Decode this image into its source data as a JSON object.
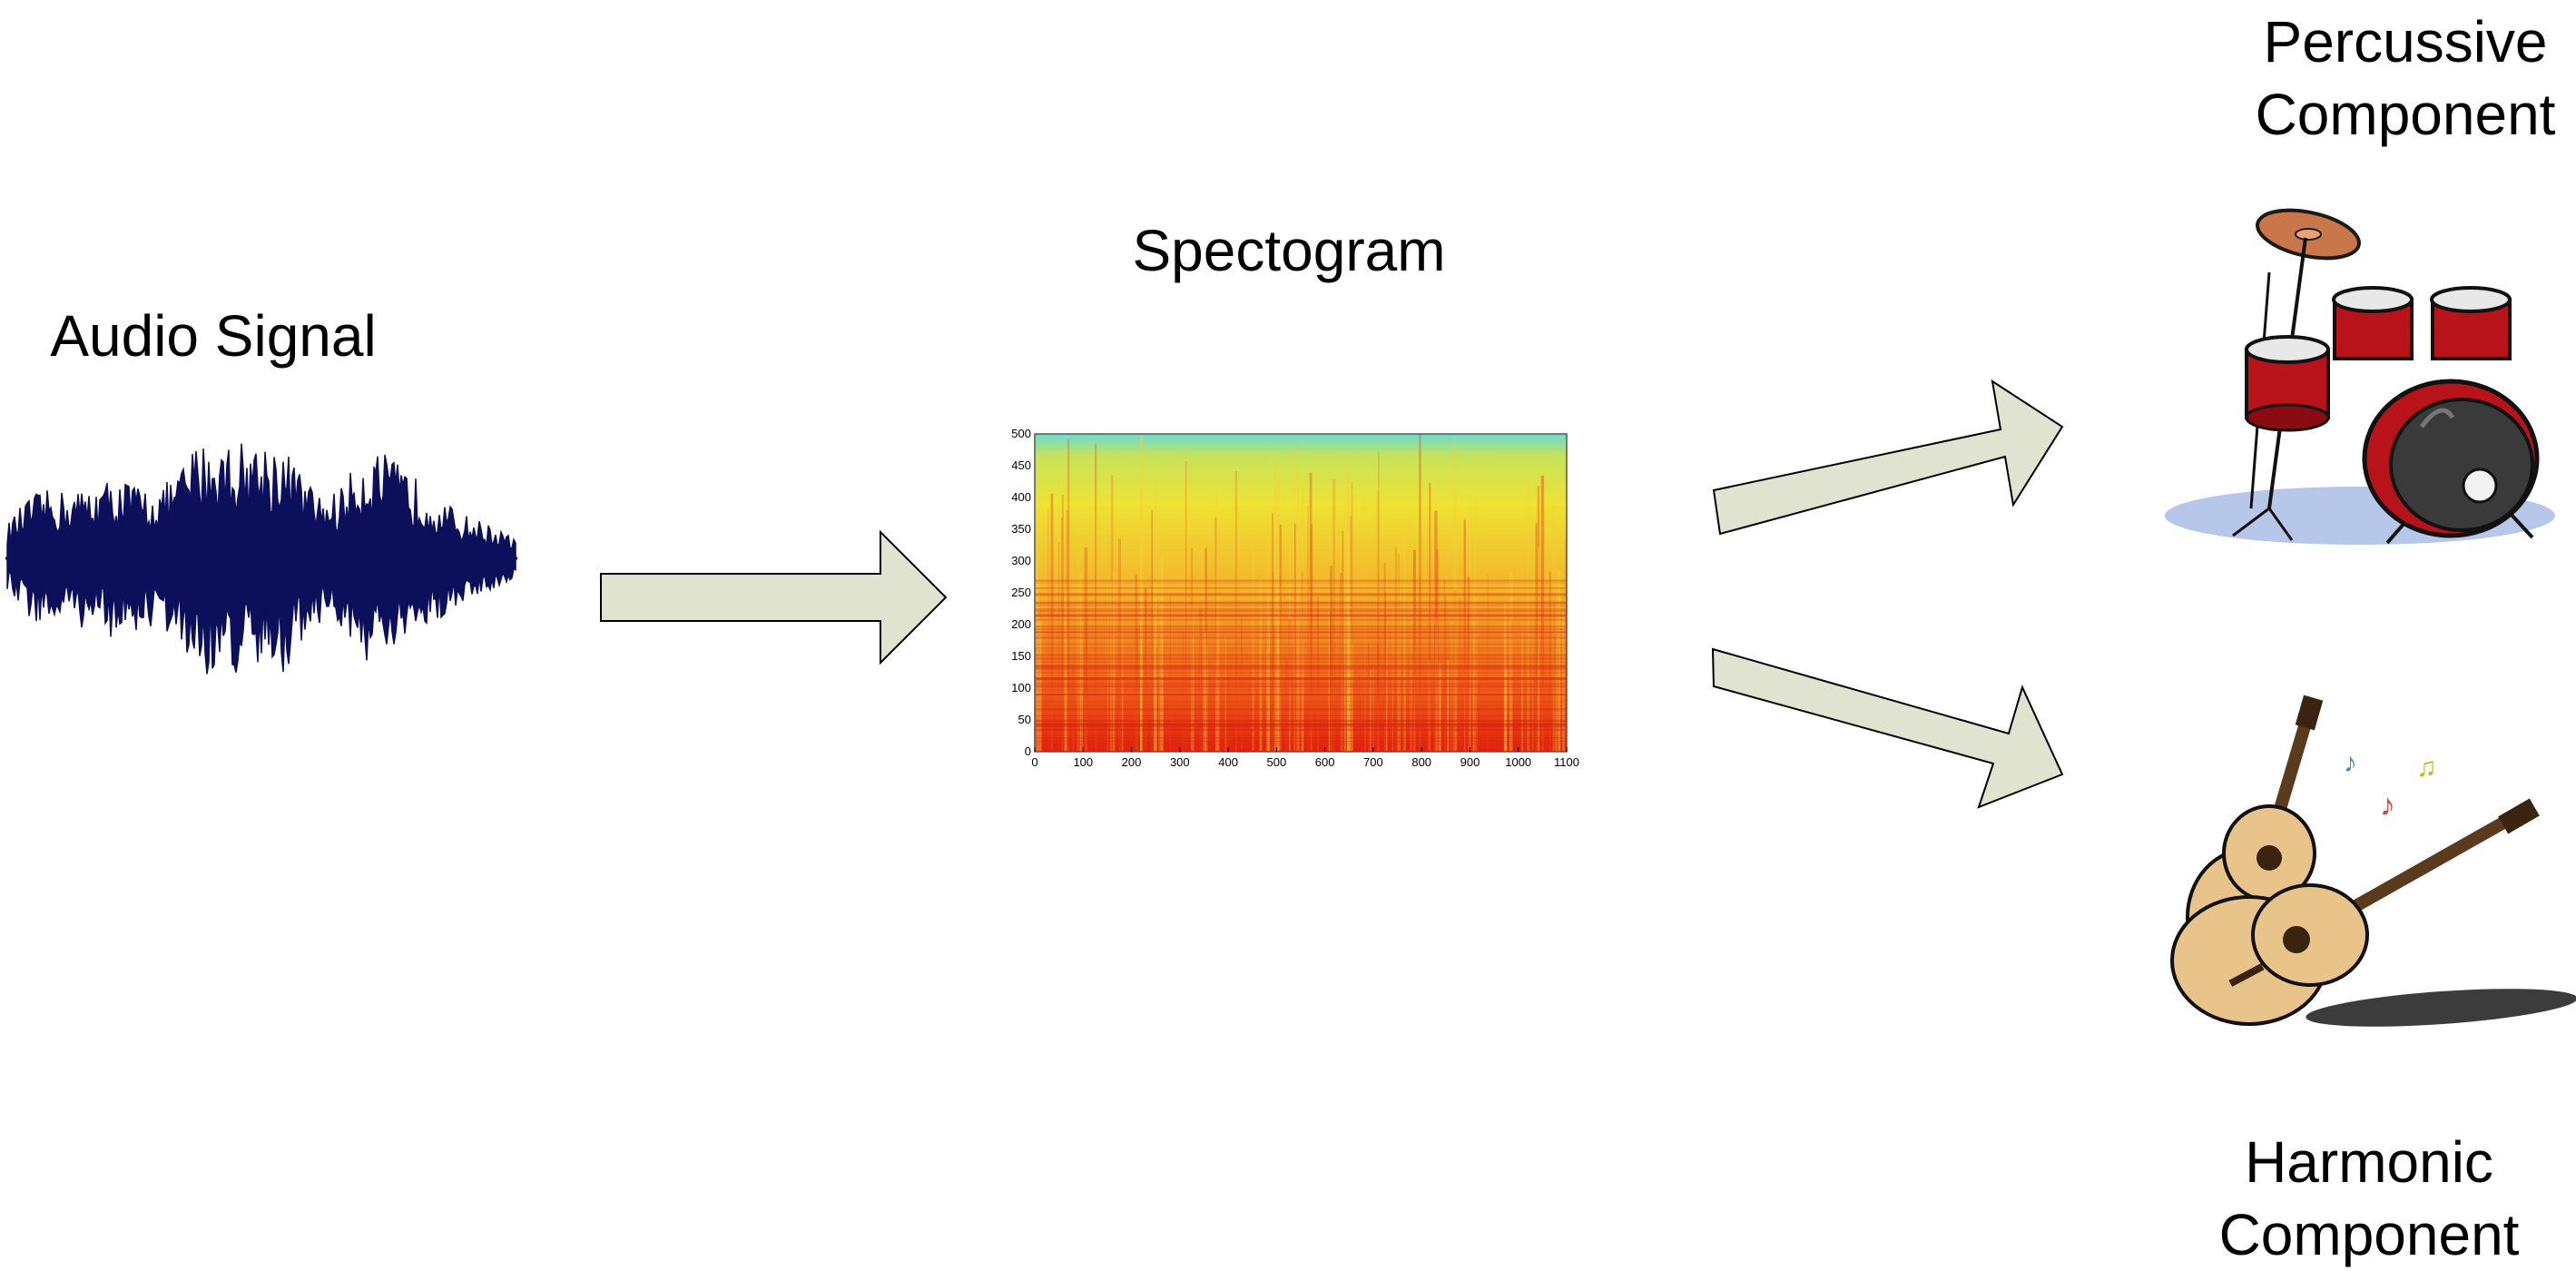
{
  "labels": {
    "audio": "Audio Signal",
    "spectrogram": "Spectogram",
    "percussive_line1": "Percussive",
    "percussive_line2": "Component",
    "harmonic_line1": "Harmonic",
    "harmonic_line2": "Component"
  },
  "spectrogram": {
    "x_ticks": [
      "0",
      "100",
      "200",
      "300",
      "400",
      "500",
      "600",
      "700",
      "800",
      "900",
      "1000",
      "1100"
    ],
    "y_ticks": [
      "0",
      "50",
      "100",
      "150",
      "200",
      "250",
      "300",
      "350",
      "400",
      "450",
      "500"
    ]
  },
  "colors": {
    "waveform": "#0c0f5a",
    "arrow_fill": "#dfe3cf",
    "arrow_stroke": "#000000",
    "drum_red": "#b8121b",
    "cymbal": "#c8764a",
    "guitar_body": "#e9c48a"
  }
}
